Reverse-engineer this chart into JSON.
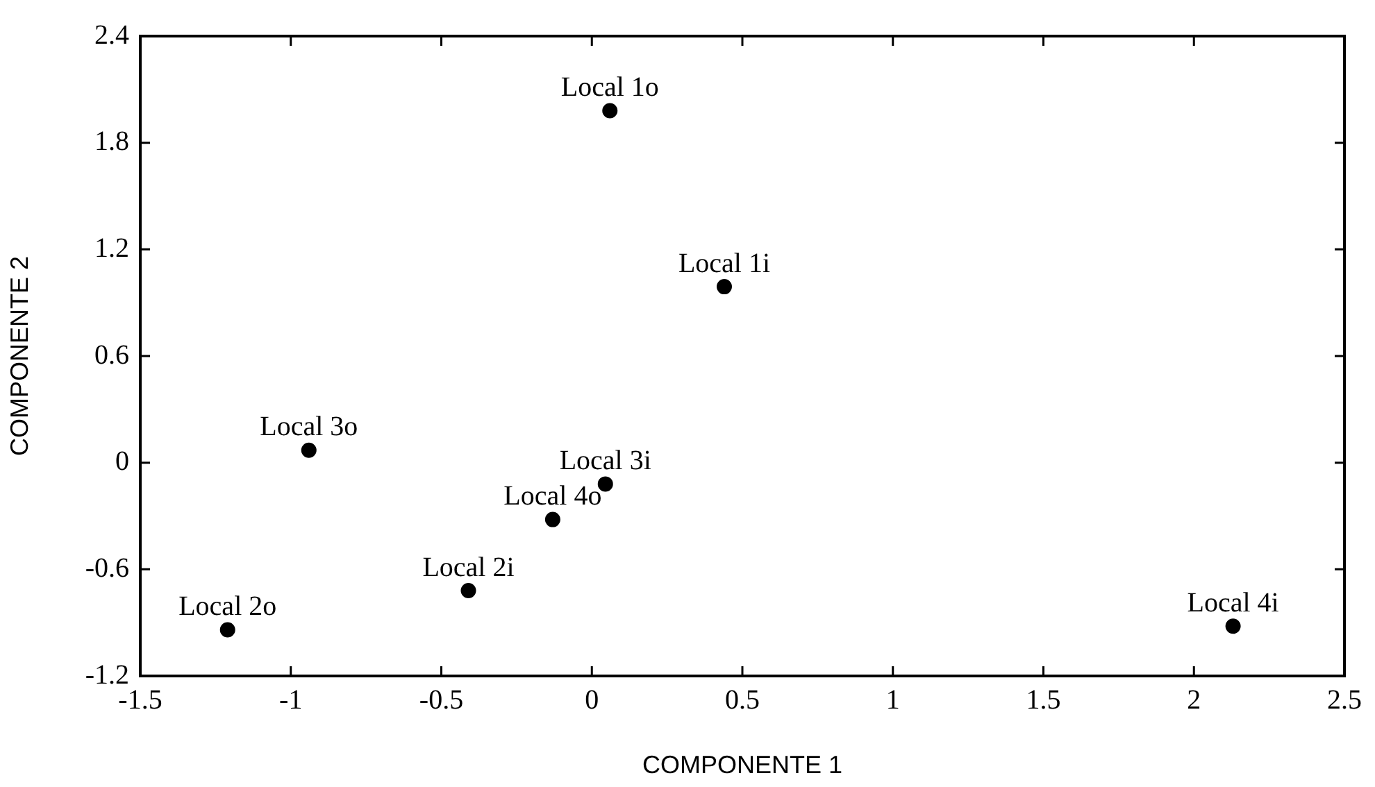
{
  "chart_data": {
    "type": "scatter",
    "xlabel": "COMPONENTE 1",
    "ylabel": "COMPONENTE 2",
    "xlim": [
      -1.5,
      2.5
    ],
    "xticks": [
      -1.5,
      -1,
      -0.5,
      0,
      0.5,
      1,
      1.5,
      2,
      2.5
    ],
    "ylim": [
      -1.2,
      2.4
    ],
    "yticks": [
      -1.2,
      -0.6,
      0,
      0.6,
      1.2,
      1.8,
      2.4
    ],
    "grid": false,
    "marker": "circle",
    "color": "#000000",
    "x": [
      0.06,
      0.44,
      -1.21,
      -0.41,
      -0.94,
      0.045,
      -0.13,
      2.13
    ],
    "values": [
      1.98,
      0.99,
      -0.94,
      -0.72,
      0.07,
      -0.12,
      -0.32,
      -0.92
    ],
    "annotations": [
      {
        "text": "Local 1o",
        "x": 0.06,
        "y": 1.98
      },
      {
        "text": "Local 1i",
        "x": 0.44,
        "y": 0.99
      },
      {
        "text": "Local 2o",
        "x": -1.21,
        "y": -0.94
      },
      {
        "text": "Local 2i",
        "x": -0.41,
        "y": -0.72
      },
      {
        "text": "Local 3o",
        "x": -0.94,
        "y": 0.07
      },
      {
        "text": "Local 3i",
        "x": 0.045,
        "y": -0.12
      },
      {
        "text": "Local 4o",
        "x": -0.13,
        "y": -0.32
      },
      {
        "text": "Local 4i",
        "x": 2.13,
        "y": -0.92
      }
    ]
  }
}
